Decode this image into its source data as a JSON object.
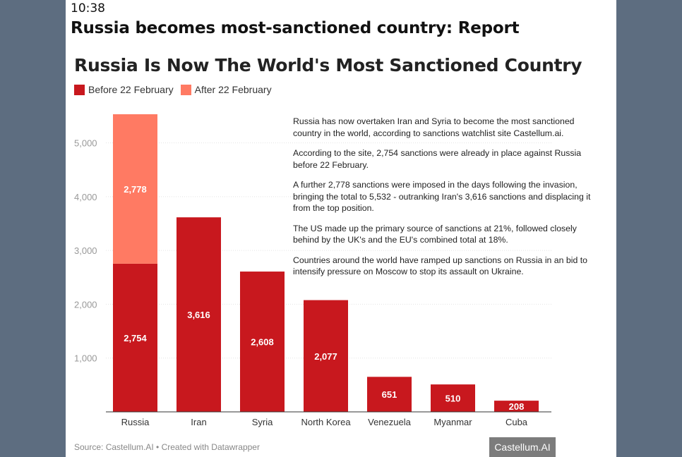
{
  "status_bar": {
    "time": "10:38"
  },
  "article": {
    "headline": "Russia becomes most-sanctioned country: Report"
  },
  "chart_data": {
    "type": "bar",
    "stacked": true,
    "title": "Russia Is Now The World's Most Sanctioned Country",
    "categories": [
      "Russia",
      "Iran",
      "Syria",
      "North Korea",
      "Venezuela",
      "Myanmar",
      "Cuba"
    ],
    "series": [
      {
        "name": "Before 22 February",
        "color": "#c8181e",
        "values": [
          2754,
          3616,
          2608,
          2077,
          651,
          510,
          208
        ],
        "labels": [
          "2,754",
          "3,616",
          "2,608",
          "2,077",
          "651",
          "510",
          "208"
        ]
      },
      {
        "name": "After 22 February",
        "color": "#ff7a63",
        "values": [
          2778,
          0,
          0,
          0,
          0,
          0,
          0
        ],
        "labels": [
          "2,778",
          "",
          "",
          "",
          "",
          "",
          ""
        ]
      }
    ],
    "yticks": [
      1000,
      2000,
      3000,
      4000,
      5000
    ],
    "ytick_labels": [
      "1,000",
      "2,000",
      "3,000",
      "4,000",
      "5,000"
    ],
    "ylim": [
      0,
      5532
    ],
    "grid": true,
    "legend_position": "top-left",
    "xlabel": "",
    "ylabel": ""
  },
  "notes": [
    "Russia has now overtaken Iran and Syria to become the most sanctioned country in the world, according to sanctions watchlist site Castellum.ai.",
    "According to the site, 2,754 sanctions were already in place against Russia before 22 February.",
    "A further 2,778 sanctions were imposed in the days following the invasion, bringing the total to 5,532 - outranking Iran's 3,616 sanctions and displacing it from the top position.",
    "The US made up the primary source of sanctions at 21%, followed closely behind by the UK's and the EU's combined total at 18%.",
    "Countries around the world have ramped up sanctions on Russia in an bid to intensify pressure on Moscow to stop its assault on Ukraine."
  ],
  "source": "Source: Castellum.AI • Created with Datawrapper",
  "watermark": "Castellum.AI"
}
